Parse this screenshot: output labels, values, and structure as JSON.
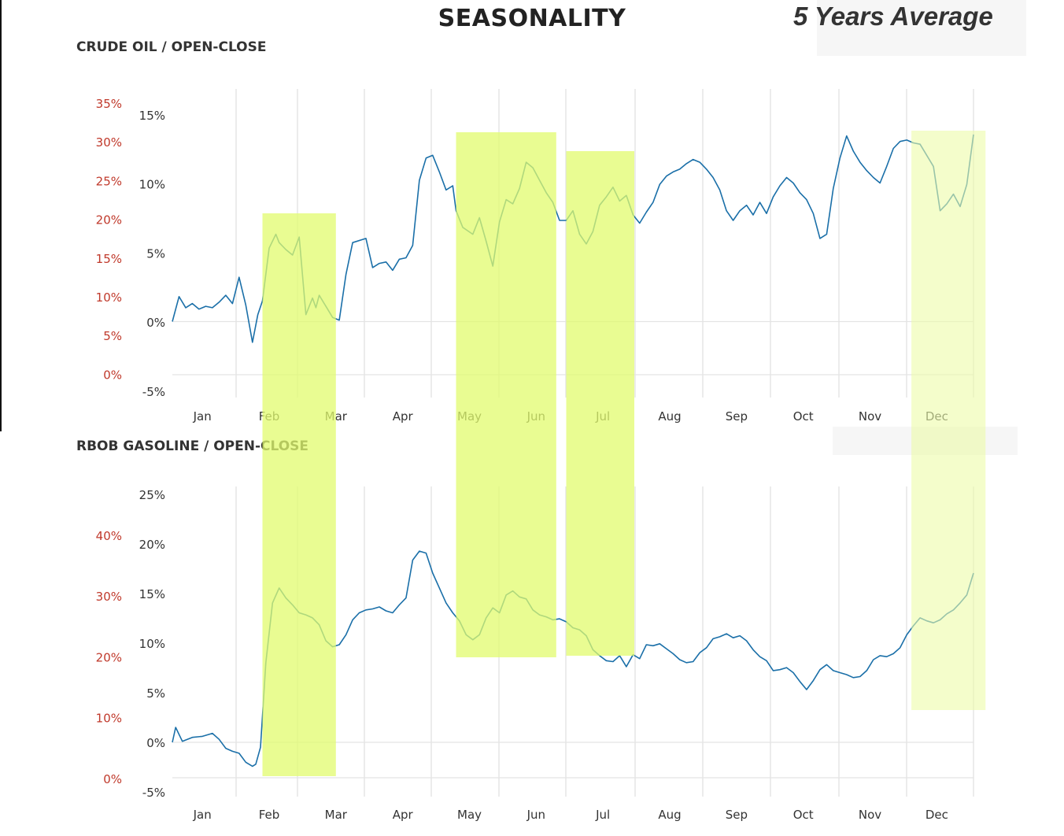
{
  "header": {
    "title": "SEASONALITY",
    "badge": "5 Years Average"
  },
  "colors": {
    "line": "#1a6fa8",
    "highlight": "#e2fb6e",
    "highlight_faint": "#ecfba9",
    "secondary_axis": "#c0392b",
    "grid": "#dddddd"
  },
  "highlight_periods": [
    {
      "from_month": 1.35,
      "to_month": 2.45
    },
    {
      "from_month": 4.25,
      "to_month": 5.75
    },
    {
      "from_month": 5.9,
      "to_month": 6.92
    },
    {
      "from_month": 11.07,
      "to_month": 12.18,
      "faint": true
    }
  ],
  "chart_data": [
    {
      "type": "line",
      "title": "CRUDE OIL / OPEN-CLOSE",
      "x_unit": "month",
      "categories": [
        "Jan",
        "Feb",
        "Mar",
        "Apr",
        "May",
        "Jun",
        "Jul",
        "Aug",
        "Sep",
        "Oct",
        "Nov",
        "Dec"
      ],
      "ylim": [
        -5,
        15
      ],
      "yticks": [
        "15%",
        "10%",
        "5%",
        "0%",
        "-5%"
      ],
      "secondary_yticks": [
        "35%",
        "30%",
        "25%",
        "20%",
        "15%",
        "10%",
        "5%",
        "0%"
      ],
      "series": [
        {
          "x": [
            0.0,
            0.1,
            0.2,
            0.3,
            0.4,
            0.5,
            0.6,
            0.7,
            0.8,
            0.9,
            1.0,
            1.1,
            1.2,
            1.28,
            1.35,
            1.45,
            1.55,
            1.6,
            1.7,
            1.8,
            1.9,
            2.0,
            2.1,
            2.15,
            2.2,
            2.3,
            2.4,
            2.5,
            2.6,
            2.7,
            2.9,
            3.0,
            3.1,
            3.2,
            3.3,
            3.4,
            3.5,
            3.6,
            3.7,
            3.8,
            3.9,
            4.0,
            4.1,
            4.2,
            4.25,
            4.35,
            4.5,
            4.6,
            4.7,
            4.8,
            4.9,
            5.0,
            5.1,
            5.2,
            5.3,
            5.4,
            5.5,
            5.6,
            5.7,
            5.8,
            5.9,
            6.0,
            6.1,
            6.2,
            6.3,
            6.4,
            6.5,
            6.6,
            6.7,
            6.8,
            6.9,
            7.0,
            7.1,
            7.2,
            7.3,
            7.4,
            7.5,
            7.6,
            7.7,
            7.8,
            7.9,
            8.0,
            8.1,
            8.2,
            8.3,
            8.4,
            8.5,
            8.6,
            8.7,
            8.8,
            8.9,
            9.0,
            9.1,
            9.2,
            9.3,
            9.4,
            9.5,
            9.6,
            9.7,
            9.8,
            9.9,
            10.0,
            10.1,
            10.2,
            10.3,
            10.4,
            10.5,
            10.6,
            10.7,
            10.8,
            10.9,
            11.0,
            11.1,
            11.2,
            11.3,
            11.4,
            11.5,
            11.6,
            11.7,
            11.8,
            11.9,
            12.0
          ],
          "y": [
            0.0,
            1.8,
            1.0,
            1.3,
            0.9,
            1.1,
            1.0,
            1.4,
            1.9,
            1.3,
            3.2,
            1.2,
            -1.5,
            0.5,
            1.5,
            5.3,
            6.3,
            5.7,
            5.2,
            4.8,
            6.1,
            0.5,
            1.7,
            1.0,
            1.9,
            1.1,
            0.3,
            0.1,
            3.4,
            5.7,
            6.0,
            3.9,
            4.2,
            4.3,
            3.7,
            4.5,
            4.6,
            5.5,
            10.2,
            11.8,
            12.0,
            10.8,
            9.5,
            9.8,
            8.0,
            6.8,
            6.3,
            7.5,
            5.8,
            4.0,
            7.2,
            8.8,
            8.5,
            9.6,
            11.5,
            11.1,
            10.2,
            9.3,
            8.6,
            7.3,
            7.3,
            8.0,
            6.3,
            5.6,
            6.5,
            8.4,
            9.0,
            9.7,
            8.7,
            9.1,
            7.7,
            7.1,
            7.9,
            8.6,
            9.9,
            10.5,
            10.8,
            11.0,
            11.4,
            11.7,
            11.5,
            11.0,
            10.4,
            9.5,
            8.0,
            7.3,
            8.0,
            8.4,
            7.7,
            8.6,
            7.8,
            9.0,
            9.8,
            10.4,
            10.0,
            9.3,
            8.8,
            7.8,
            6.0,
            6.3,
            9.6,
            11.8,
            13.4,
            12.3,
            11.5,
            10.9,
            10.4,
            10.0,
            11.2,
            12.5,
            13.0,
            13.1,
            12.9,
            12.8,
            12.0,
            11.2,
            8.0,
            8.5,
            9.2,
            8.3,
            9.9,
            13.5
          ],
          "smoothing": "none"
        }
      ]
    },
    {
      "type": "line",
      "title": "RBOB GASOLINE / OPEN-CLOSE",
      "x_unit": "month",
      "categories": [
        "Jan",
        "Feb",
        "Mar",
        "Apr",
        "May",
        "Jun",
        "Jul",
        "Aug",
        "Sep",
        "Oct",
        "Nov",
        "Dec"
      ],
      "ylim": [
        -5,
        25
      ],
      "yticks": [
        "25%",
        "20%",
        "15%",
        "10%",
        "5%",
        "0%",
        "-5%"
      ],
      "secondary_yticks": [
        "40%",
        "30%",
        "20%",
        "10%",
        "0%"
      ],
      "series": [
        {
          "x": [
            0.0,
            0.05,
            0.15,
            0.3,
            0.45,
            0.6,
            0.7,
            0.8,
            0.9,
            1.0,
            1.1,
            1.2,
            1.25,
            1.32,
            1.4,
            1.5,
            1.6,
            1.7,
            1.8,
            1.9,
            2.0,
            2.1,
            2.2,
            2.3,
            2.4,
            2.5,
            2.6,
            2.7,
            2.8,
            2.9,
            3.0,
            3.1,
            3.2,
            3.3,
            3.4,
            3.5,
            3.6,
            3.7,
            3.8,
            3.9,
            4.0,
            4.1,
            4.2,
            4.3,
            4.4,
            4.5,
            4.6,
            4.7,
            4.8,
            4.9,
            5.0,
            5.1,
            5.2,
            5.3,
            5.4,
            5.5,
            5.6,
            5.7,
            5.8,
            5.9,
            6.0,
            6.1,
            6.2,
            6.3,
            6.4,
            6.5,
            6.6,
            6.7,
            6.8,
            6.9,
            7.0,
            7.1,
            7.2,
            7.3,
            7.4,
            7.5,
            7.6,
            7.7,
            7.8,
            7.9,
            8.0,
            8.1,
            8.2,
            8.3,
            8.4,
            8.5,
            8.6,
            8.7,
            8.8,
            8.9,
            9.0,
            9.1,
            9.2,
            9.3,
            9.4,
            9.5,
            9.6,
            9.7,
            9.8,
            9.9,
            10.0,
            10.1,
            10.2,
            10.3,
            10.4,
            10.5,
            10.6,
            10.7,
            10.8,
            10.9,
            11.0,
            11.1,
            11.2,
            11.3,
            11.4,
            11.5,
            11.6,
            11.7,
            11.8,
            11.9,
            12.0
          ],
          "y": [
            0.0,
            1.5,
            0.1,
            0.5,
            0.6,
            0.9,
            0.3,
            -0.6,
            -0.9,
            -1.1,
            -2.0,
            -2.4,
            -2.2,
            -0.5,
            8.0,
            14.0,
            15.5,
            14.5,
            13.8,
            13.0,
            12.8,
            12.5,
            11.8,
            10.2,
            9.6,
            9.8,
            10.8,
            12.3,
            13.0,
            13.3,
            13.4,
            13.6,
            13.2,
            13.0,
            13.8,
            14.5,
            18.3,
            19.2,
            19.0,
            17.0,
            15.5,
            14.0,
            13.0,
            12.2,
            10.8,
            10.3,
            10.8,
            12.5,
            13.5,
            13.0,
            14.8,
            15.2,
            14.6,
            14.4,
            13.3,
            12.8,
            12.6,
            12.3,
            12.4,
            12.1,
            11.5,
            11.3,
            10.7,
            9.3,
            8.7,
            8.2,
            8.1,
            8.7,
            7.6,
            8.8,
            8.4,
            9.8,
            9.7,
            9.9,
            9.4,
            8.9,
            8.3,
            8.0,
            8.1,
            9.0,
            9.5,
            10.4,
            10.6,
            10.9,
            10.5,
            10.7,
            10.2,
            9.3,
            8.6,
            8.2,
            7.2,
            7.3,
            7.5,
            7.0,
            6.1,
            5.3,
            6.2,
            7.3,
            7.8,
            7.2,
            7.0,
            6.8,
            6.5,
            6.6,
            7.2,
            8.3,
            8.7,
            8.6,
            8.9,
            9.5,
            10.8,
            11.7,
            12.5,
            12.2,
            12.0,
            12.3,
            12.9,
            13.3,
            14.0,
            14.8,
            17.0
          ],
          "smoothing": "none"
        }
      ]
    }
  ]
}
